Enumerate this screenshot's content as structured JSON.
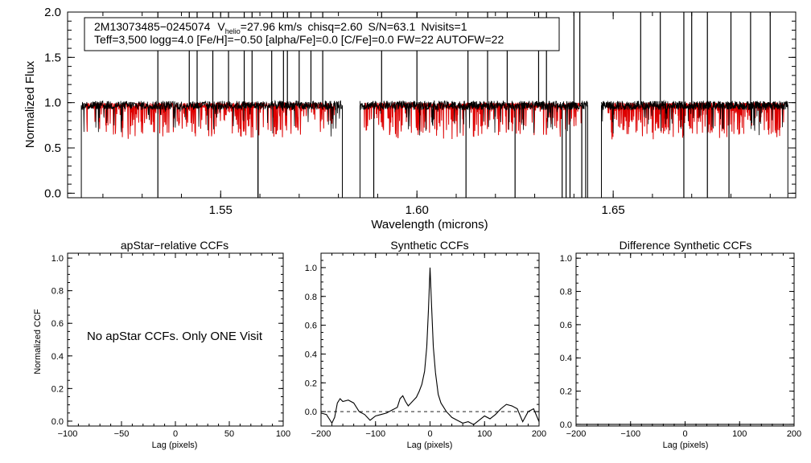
{
  "chart_data": [
    {
      "type": "line",
      "panel": "spectrum",
      "xlabel": "Wavelength (microns)",
      "ylabel": "Normalized Flux",
      "xlim": [
        1.511,
        1.6965
      ],
      "ylim": [
        -0.05,
        2.0
      ],
      "xticks": [
        "1.55",
        "1.60",
        "1.65"
      ],
      "yticks": [
        "0.0",
        "0.5",
        "1.0",
        "1.5",
        "2.0"
      ],
      "info_line1": {
        "star": "2M13073485−0245074",
        "v_prefix": "V",
        "v_sub": "helio",
        "v_suffix": "=27.96 km/s",
        "chisq": "chisq=2.60",
        "snr": "S/N=63.1",
        "nvisits": "Nvisits=1"
      },
      "info_line2": "Teff=3,500 logg=4.0 [Fe/H]=−0.50 [alpha/Fe]=0.0 [C/Fe]=0.0 FW=22 AUTOFW=22",
      "detector_chips": [
        [
          1.5145,
          1.581
        ],
        [
          1.5855,
          1.6435
        ],
        [
          1.647,
          1.6945
        ]
      ],
      "model_chips": [
        [
          1.5155,
          1.579
        ],
        [
          1.5865,
          1.642
        ],
        [
          1.6485,
          1.6935
        ]
      ],
      "continuum_level": 0.97,
      "series": [
        {
          "name": "observed",
          "color": "#000000"
        },
        {
          "name": "model",
          "color": "#dd0000"
        }
      ]
    },
    {
      "type": "line",
      "panel": "apstar",
      "title": "apStar−relative CCFs",
      "ylabel": "Normalized CCF",
      "xlabel": "Lag (pixels)",
      "xlim": [
        -100,
        100
      ],
      "ylim": [
        -0.03,
        1.03
      ],
      "xticks": [
        "−100",
        "−50",
        "0",
        "50",
        "100"
      ],
      "yticks": [
        "0.0",
        "0.2",
        "0.4",
        "0.6",
        "0.8",
        "1.0"
      ],
      "message": "No apStar CCFs.  Only ONE Visit"
    },
    {
      "type": "line",
      "panel": "synthetic",
      "title": "Synthetic CCFs",
      "xlabel": "Lag (pixels)",
      "xlim": [
        -200,
        200
      ],
      "ylim": [
        -0.1,
        1.1
      ],
      "xticks": [
        "−200",
        "−100",
        "0",
        "100",
        "200"
      ],
      "yticks": [
        "0.0",
        "0.2",
        "0.4",
        "0.6",
        "0.8",
        "1.0"
      ],
      "zero_line": 0.0,
      "series": [
        {
          "name": "ccf",
          "x": [
            -200,
            -190,
            -180,
            -175,
            -170,
            -165,
            -160,
            -150,
            -140,
            -130,
            -120,
            -110,
            -100,
            -90,
            -80,
            -70,
            -60,
            -55,
            -50,
            -45,
            -40,
            -35,
            -30,
            -25,
            -20,
            -15,
            -10,
            -6,
            -3,
            0,
            3,
            6,
            10,
            15,
            20,
            25,
            30,
            35,
            40,
            50,
            60,
            70,
            80,
            90,
            100,
            110,
            120,
            130,
            140,
            150,
            160,
            170,
            180,
            190,
            200
          ],
          "y": [
            -0.01,
            -0.02,
            -0.08,
            -0.04,
            0.06,
            0.09,
            0.07,
            0.08,
            0.06,
            0.0,
            -0.02,
            -0.06,
            -0.03,
            -0.02,
            -0.01,
            0.01,
            0.03,
            0.09,
            0.11,
            0.07,
            0.04,
            0.06,
            0.08,
            0.1,
            0.14,
            0.19,
            0.28,
            0.45,
            0.7,
            1.0,
            0.72,
            0.45,
            0.27,
            0.12,
            0.06,
            0.03,
            0.0,
            -0.02,
            -0.04,
            -0.06,
            -0.08,
            -0.07,
            -0.09,
            -0.06,
            -0.03,
            -0.05,
            -0.02,
            0.02,
            0.05,
            0.04,
            0.02,
            -0.07,
            0.0,
            0.02,
            -0.07
          ]
        }
      ]
    },
    {
      "type": "line",
      "panel": "difference",
      "title": "Difference Synthetic CCFs",
      "xlabel": "Lag (pixels)",
      "xlim": [
        -200,
        200
      ],
      "ylim": [
        -0.01,
        1.03
      ],
      "xticks": [
        "−200",
        "−100",
        "0",
        "100",
        "200"
      ],
      "yticks": [
        "0.0",
        "0.2",
        "0.4",
        "0.6",
        "0.8",
        "1.0"
      ],
      "series": [
        {
          "name": "diff",
          "x": [
            -200,
            200
          ],
          "y": [
            0.0,
            0.0
          ]
        }
      ]
    }
  ]
}
